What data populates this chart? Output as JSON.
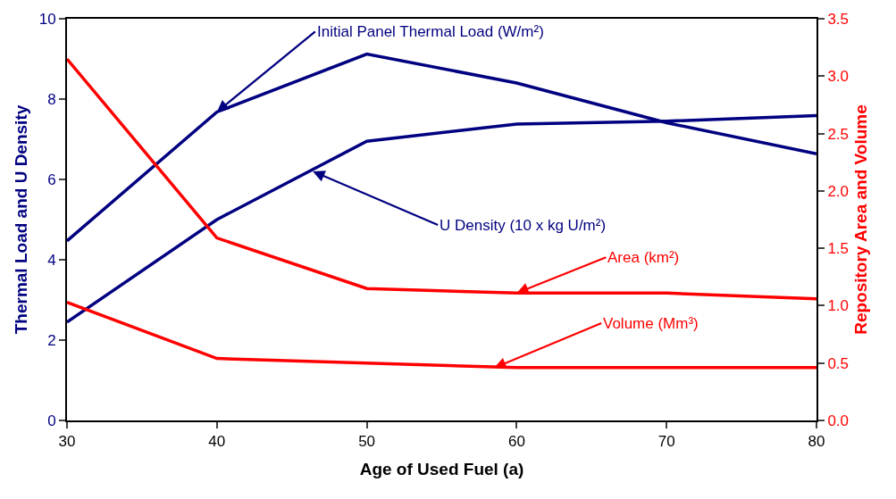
{
  "chart_data": {
    "type": "line",
    "xlabel": "Age of Used Fuel (a)",
    "ylabel": "Thermal Load and U Density",
    "y2label": "Repository Area and Volume",
    "x": [
      30,
      40,
      50,
      60,
      70,
      80
    ],
    "series": [
      {
        "color": "#000080",
        "values": [
          4.47,
          7.68,
          9.12,
          8.4,
          7.41,
          6.64
        ]
      },
      {
        "color": "#000080",
        "values": [
          2.45,
          5.0,
          6.95,
          7.38,
          7.45,
          7.59
        ]
      },
      {
        "color": "#ff0000",
        "axis": "y2",
        "values": [
          3.15,
          1.59,
          1.15,
          1.11,
          1.11,
          1.06
        ]
      },
      {
        "color": "#ff0000",
        "axis": "y2",
        "values": [
          1.03,
          0.54,
          0.5,
          0.46,
          0.46,
          0.46
        ]
      }
    ],
    "annotations": [
      {
        "text": "Initial Panel Thermal Load (W/m²)",
        "x": 40,
        "y": 7.68
      },
      {
        "text": "U Density (10 x kg U/m²)",
        "x": 46.4,
        "y": 6.2
      },
      {
        "text": "Area (km²)",
        "x": 60,
        "y": 3.17
      },
      {
        "text": "Volume (Mm³)",
        "x": 58.5,
        "y": 1.31
      }
    ],
    "xlim": [
      30,
      80
    ],
    "xticks": [
      30,
      40,
      50,
      60,
      70,
      80
    ],
    "ylim": [
      0,
      10
    ],
    "yticks": [
      0,
      2,
      4,
      6,
      8,
      10
    ],
    "y2lim": [
      0,
      3.5
    ],
    "y2ticks": [
      {
        "value": 0,
        "label": "0.0"
      },
      {
        "value": 0.5,
        "label": "0.5"
      },
      {
        "value": 1,
        "label": "1.0"
      },
      {
        "value": 1.5,
        "label": "1.5"
      },
      {
        "value": 2,
        "label": "2.0"
      },
      {
        "value": 2.5,
        "label": "2.5"
      },
      {
        "value": 3,
        "label": "3.0"
      },
      {
        "value": 3.5,
        "label": "3.5"
      }
    ],
    "marker": "none",
    "line_style": "solid"
  }
}
